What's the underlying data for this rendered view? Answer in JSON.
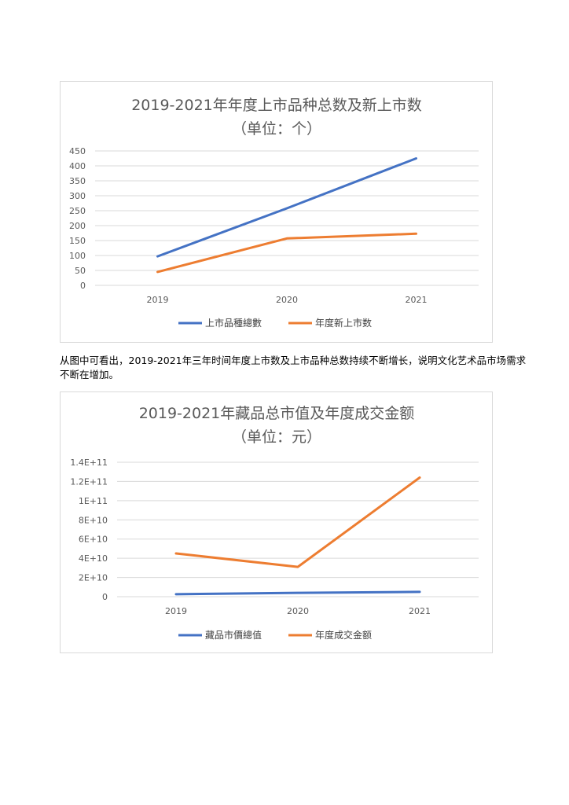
{
  "paragraph": "从图中可看出，2019-2021年三年时间年度上市数及上市品种总数持续不断增长，说明文化艺术品市场需求不断在增加。",
  "chart_data": [
    {
      "type": "line",
      "title": "2019-2021年年度上市品种总数及新上市数",
      "subtitle": "（单位：个）",
      "categories": [
        "2019",
        "2020",
        "2021"
      ],
      "yticks": [
        "0",
        "50",
        "100",
        "150",
        "200",
        "250",
        "300",
        "350",
        "400",
        "450"
      ],
      "ylim": [
        0,
        450
      ],
      "grid": true,
      "legend_position": "bottom",
      "series": [
        {
          "name": "上市品種總數",
          "color": "#4472c4",
          "values": [
            97,
            258,
            425
          ]
        },
        {
          "name": "年度新上市数",
          "color": "#ed7d31",
          "values": [
            45,
            157,
            173
          ]
        }
      ]
    },
    {
      "type": "line",
      "title": "2019-2021年藏品总市值及年度成交金额",
      "subtitle": "（单位：元）",
      "categories": [
        "2019",
        "2020",
        "2021"
      ],
      "yticks": [
        "0",
        "2E+10",
        "4E+10",
        "6E+10",
        "8E+10",
        "1E+11",
        "1.2E+11",
        "1.4E+11"
      ],
      "ylim": [
        0,
        140000000000
      ],
      "grid": true,
      "legend_position": "bottom",
      "series": [
        {
          "name": "藏品市價總值",
          "color": "#4472c4",
          "values": [
            2500000000,
            4000000000,
            5000000000
          ]
        },
        {
          "name": "年度成交金额",
          "color": "#ed7d31",
          "values": [
            45000000000,
            31000000000,
            124000000000
          ]
        }
      ]
    }
  ]
}
